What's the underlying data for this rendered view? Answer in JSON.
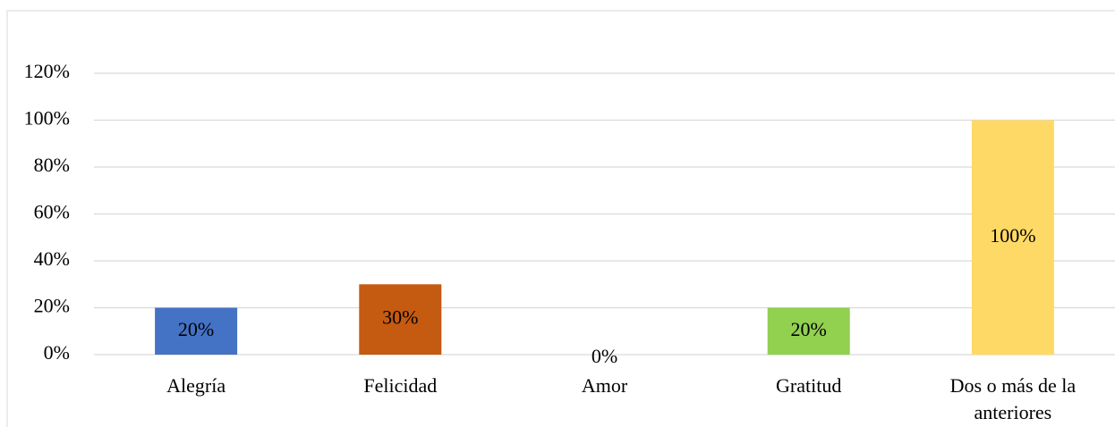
{
  "chart_data": {
    "type": "bar",
    "categories": [
      "Alegría",
      "Felicidad",
      "Amor",
      "Gratitud",
      "Dos o más de la anteriores"
    ],
    "values": [
      20,
      30,
      0,
      20,
      100
    ],
    "value_labels": [
      "20%",
      "30%",
      "0%",
      "20%",
      "100%"
    ],
    "colors": [
      "#4472c4",
      "#c55a11",
      "#a5a5a5",
      "#92d050",
      "#ffd966"
    ],
    "ylim": [
      0,
      120
    ],
    "yticks": [
      {
        "value": 0,
        "label": "0%"
      },
      {
        "value": 20,
        "label": "20%"
      },
      {
        "value": 40,
        "label": "40%"
      },
      {
        "value": 60,
        "label": "60%"
      },
      {
        "value": 80,
        "label": "80%"
      },
      {
        "value": 100,
        "label": "100%"
      },
      {
        "value": 120,
        "label": "120%"
      }
    ],
    "grid": true
  }
}
